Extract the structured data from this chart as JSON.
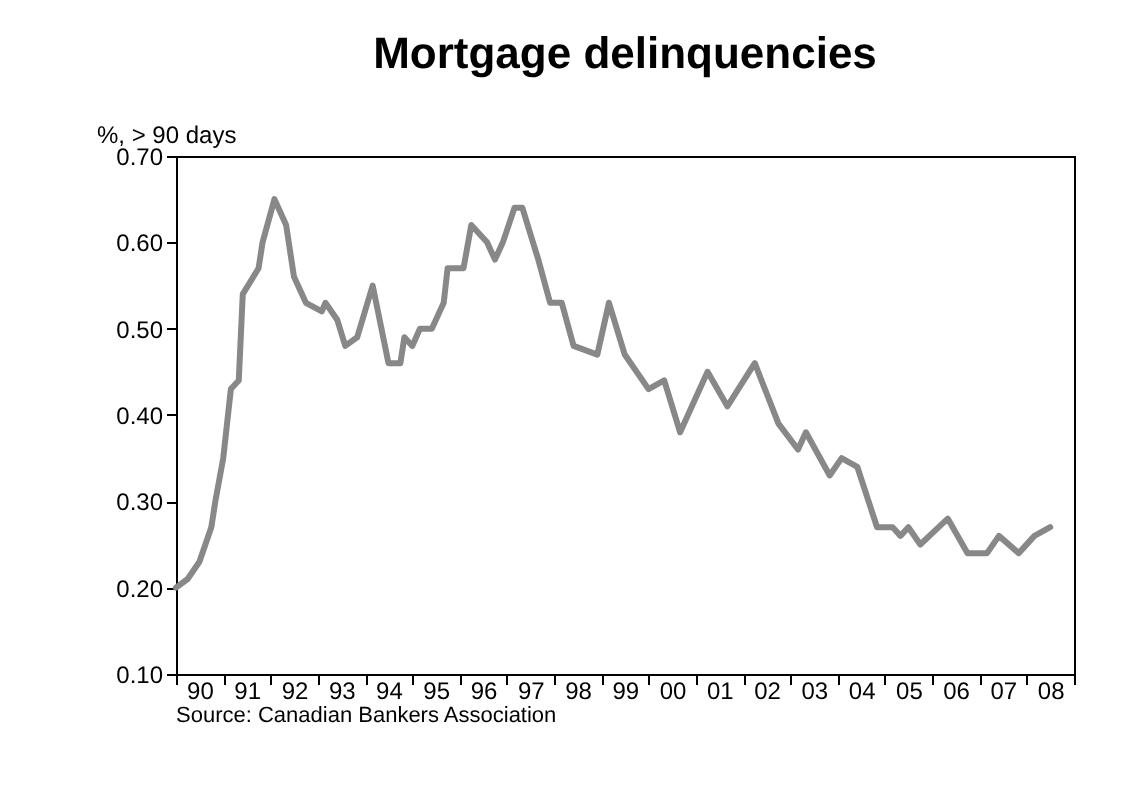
{
  "chart_data": {
    "type": "line",
    "title": "Mortgage delinquencies",
    "ylabel": "%, > 90 days",
    "annotations": [
      "Source: Canadian Bankers Association"
    ],
    "series": [
      {
        "color": "#888888",
        "x": [
          "1990-01",
          "1990-04",
          "1990-07",
          "1990-10",
          "1990-11",
          "1991-01",
          "1991-03",
          "1991-05",
          "1991-06",
          "1991-10",
          "1991-11",
          "1992-02",
          "1992-05",
          "1992-07",
          "1992-10",
          "1993-02",
          "1993-03",
          "1993-06",
          "1993-08",
          "1993-11",
          "1994-03",
          "1994-07",
          "1994-10",
          "1994-11",
          "1995-01",
          "1995-03",
          "1995-06",
          "1995-09",
          "1995-10",
          "1996-02",
          "1996-04",
          "1996-08",
          "1996-10",
          "1996-12",
          "1997-03",
          "1997-05",
          "1997-07",
          "1997-09",
          "1997-12",
          "1998-03",
          "1998-06",
          "1998-12",
          "1999-03",
          "1999-07",
          "2000-01",
          "2000-05",
          "2000-09",
          "2000-12",
          "2001-04",
          "2001-09",
          "2002-04",
          "2002-10",
          "2003-03",
          "2003-05",
          "2003-11",
          "2004-02",
          "2004-06",
          "2004-11",
          "2005-03",
          "2005-05",
          "2005-07",
          "2005-10",
          "2006-05",
          "2006-10",
          "2007-03",
          "2007-06",
          "2007-11",
          "2008-03",
          "2008-07"
        ],
        "values": [
          0.2,
          0.21,
          0.23,
          0.27,
          0.3,
          0.35,
          0.43,
          0.44,
          0.54,
          0.57,
          0.6,
          0.65,
          0.62,
          0.56,
          0.53,
          0.52,
          0.53,
          0.51,
          0.48,
          0.49,
          0.55,
          0.46,
          0.46,
          0.49,
          0.48,
          0.5,
          0.5,
          0.53,
          0.57,
          0.57,
          0.62,
          0.6,
          0.58,
          0.6,
          0.64,
          0.64,
          0.61,
          0.58,
          0.53,
          0.53,
          0.48,
          0.47,
          0.53,
          0.47,
          0.43,
          0.44,
          0.38,
          0.41,
          0.45,
          0.41,
          0.46,
          0.39,
          0.36,
          0.38,
          0.33,
          0.35,
          0.34,
          0.27,
          0.27,
          0.26,
          0.27,
          0.25,
          0.28,
          0.24,
          0.24,
          0.26,
          0.24,
          0.26,
          0.27
        ]
      }
    ],
    "xlim": [
      "1990-01",
      "2009-01"
    ],
    "xticks": [
      {
        "value": "1990-01",
        "label": null
      },
      {
        "value": "1990-07",
        "label": "90"
      },
      {
        "value": "1991-01",
        "label": null
      },
      {
        "value": "1991-07",
        "label": "91"
      },
      {
        "value": "1992-01",
        "label": null
      },
      {
        "value": "1992-07",
        "label": "92"
      },
      {
        "value": "1993-01",
        "label": null
      },
      {
        "value": "1993-07",
        "label": "93"
      },
      {
        "value": "1994-01",
        "label": null
      },
      {
        "value": "1994-07",
        "label": "94"
      },
      {
        "value": "1995-01",
        "label": null
      },
      {
        "value": "1995-07",
        "label": "95"
      },
      {
        "value": "1996-01",
        "label": null
      },
      {
        "value": "1996-07",
        "label": "96"
      },
      {
        "value": "1997-01",
        "label": null
      },
      {
        "value": "1997-07",
        "label": "97"
      },
      {
        "value": "1998-01",
        "label": null
      },
      {
        "value": "1998-07",
        "label": "98"
      },
      {
        "value": "1999-01",
        "label": null
      },
      {
        "value": "1999-07",
        "label": "99"
      },
      {
        "value": "2000-01",
        "label": null
      },
      {
        "value": "2000-07",
        "label": "00"
      },
      {
        "value": "2001-01",
        "label": null
      },
      {
        "value": "2001-07",
        "label": "01"
      },
      {
        "value": "2002-01",
        "label": null
      },
      {
        "value": "2002-07",
        "label": "02"
      },
      {
        "value": "2003-01",
        "label": null
      },
      {
        "value": "2003-07",
        "label": "03"
      },
      {
        "value": "2004-01",
        "label": null
      },
      {
        "value": "2004-07",
        "label": "04"
      },
      {
        "value": "2005-01",
        "label": null
      },
      {
        "value": "2005-07",
        "label": "05"
      },
      {
        "value": "2006-01",
        "label": null
      },
      {
        "value": "2006-07",
        "label": "06"
      },
      {
        "value": "2007-01",
        "label": null
      },
      {
        "value": "2007-07",
        "label": "07"
      },
      {
        "value": "2008-01",
        "label": null
      },
      {
        "value": "2008-07",
        "label": "08"
      },
      {
        "value": "2009-01",
        "label": null
      }
    ],
    "ylim": [
      0.1,
      0.7
    ],
    "yticks": [
      {
        "value": 0.1,
        "label": "0.10"
      },
      {
        "value": 0.2,
        "label": "0.20"
      },
      {
        "value": 0.3,
        "label": "0.30"
      },
      {
        "value": 0.4,
        "label": "0.40"
      },
      {
        "value": 0.5,
        "label": "0.50"
      },
      {
        "value": 0.6,
        "label": "0.60"
      },
      {
        "value": 0.7,
        "label": "0.70"
      }
    ],
    "grid": false,
    "marker": "none",
    "line_style": "solid"
  }
}
